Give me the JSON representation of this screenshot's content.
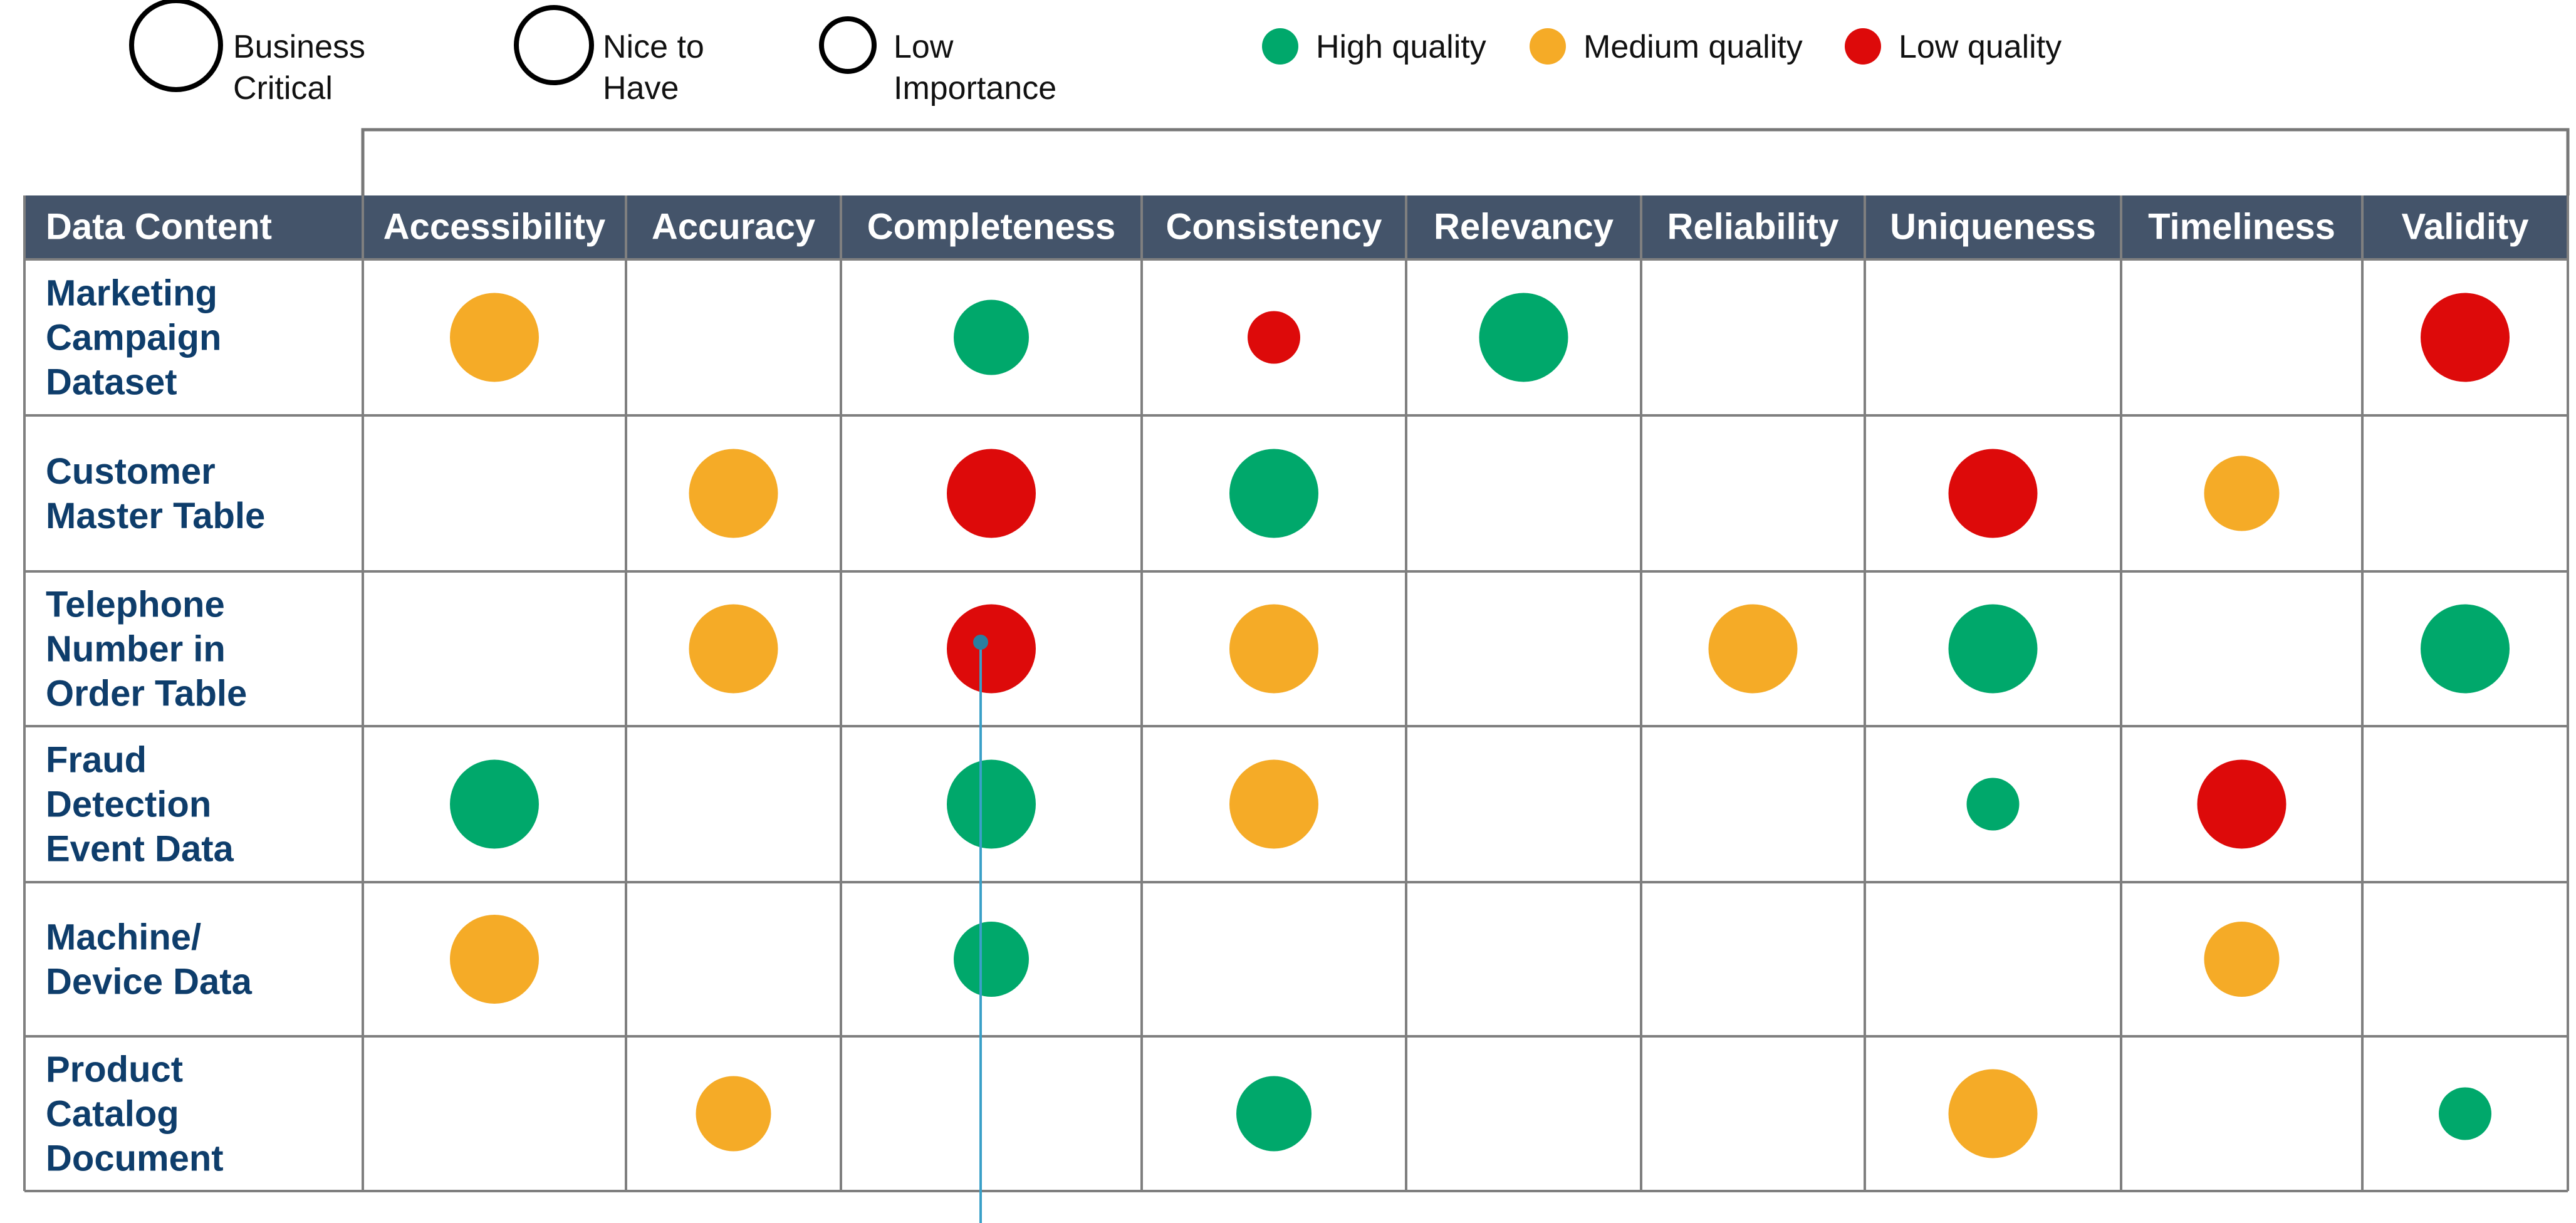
{
  "legend": {
    "importance": [
      {
        "label": [
          "Business",
          "Critical"
        ]
      },
      {
        "label": [
          "Nice to",
          "Have"
        ]
      },
      {
        "label": [
          "Low",
          "Importance"
        ]
      }
    ],
    "quality": [
      {
        "label": "High quality",
        "color": "#00a86b"
      },
      {
        "label": "Medium quality",
        "color": "#f5ab27"
      },
      {
        "label": "Low quality",
        "color": "#dd0a0a"
      }
    ]
  },
  "table": {
    "columns": [
      "Data Content",
      "Accessibility",
      "Accuracy",
      "Completeness",
      "Consistency",
      "Relevancy",
      "Reliability",
      "Uniqueness",
      "Timeliness",
      "Validity"
    ],
    "rows": [
      {
        "label": [
          "Marketing",
          "Campaign",
          "Dataset"
        ],
        "cells": [
          {
            "quality": "Medium quality",
            "importance": "Business Critical"
          },
          null,
          {
            "quality": "High quality",
            "importance": "Nice to Have"
          },
          {
            "quality": "Low quality",
            "importance": "Low Importance"
          },
          {
            "quality": "High quality",
            "importance": "Business Critical"
          },
          null,
          null,
          null,
          {
            "quality": "Low quality",
            "importance": "Business Critical"
          }
        ]
      },
      {
        "label": [
          "Customer",
          "Master Table"
        ],
        "cells": [
          null,
          {
            "quality": "Medium quality",
            "importance": "Business Critical"
          },
          {
            "quality": "Low quality",
            "importance": "Business Critical"
          },
          {
            "quality": "High quality",
            "importance": "Business Critical"
          },
          null,
          null,
          {
            "quality": "Low quality",
            "importance": "Business Critical"
          },
          {
            "quality": "Medium quality",
            "importance": "Nice to Have"
          },
          null
        ]
      },
      {
        "label": [
          "Telephone",
          "Number in",
          "Order Table"
        ],
        "cells": [
          null,
          {
            "quality": "Medium quality",
            "importance": "Business Critical"
          },
          {
            "quality": "Low quality",
            "importance": "Business Critical"
          },
          {
            "quality": "Medium quality",
            "importance": "Business Critical"
          },
          null,
          {
            "quality": "Medium quality",
            "importance": "Business Critical"
          },
          {
            "quality": "High quality",
            "importance": "Business Critical"
          },
          null,
          {
            "quality": "High quality",
            "importance": "Business Critical"
          }
        ]
      },
      {
        "label": [
          "Fraud",
          "Detection",
          "Event Data"
        ],
        "cells": [
          {
            "quality": "High quality",
            "importance": "Business Critical"
          },
          null,
          {
            "quality": "High quality",
            "importance": "Business Critical"
          },
          {
            "quality": "Medium quality",
            "importance": "Business Critical"
          },
          null,
          null,
          {
            "quality": "High quality",
            "importance": "Low Importance"
          },
          {
            "quality": "Low quality",
            "importance": "Business Critical"
          },
          null
        ]
      },
      {
        "label": [
          "Machine/",
          "Device Data"
        ],
        "cells": [
          {
            "quality": "Medium quality",
            "importance": "Business Critical"
          },
          null,
          {
            "quality": "High quality",
            "importance": "Nice to Have"
          },
          null,
          null,
          null,
          null,
          {
            "quality": "Medium quality",
            "importance": "Nice to Have"
          },
          null
        ]
      },
      {
        "label": [
          "Product",
          "Catalog",
          "Document"
        ],
        "cells": [
          null,
          {
            "quality": "Medium quality",
            "importance": "Nice to Have"
          },
          null,
          {
            "quality": "High quality",
            "importance": "Nice to Have"
          },
          null,
          null,
          {
            "quality": "Medium quality",
            "importance": "Business Critical"
          },
          null,
          {
            "quality": "High quality",
            "importance": "Low Importance"
          }
        ]
      }
    ]
  }
}
